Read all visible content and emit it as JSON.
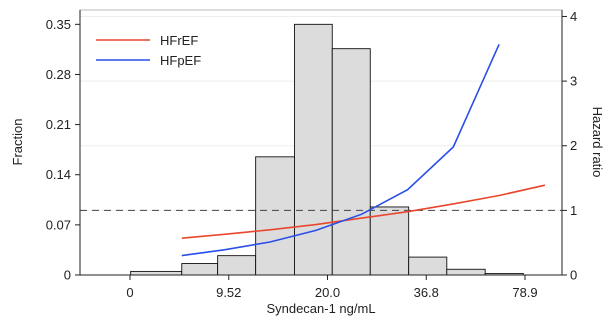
{
  "chart_data": {
    "type": "bar",
    "title": "",
    "xlabel": "Syndecan-1 ng/mL",
    "ylabel": "Fraction",
    "y2label": "Hazard ratio",
    "x_tick_labels": [
      "0",
      "9.52",
      "20.0",
      "36.8",
      "78.9"
    ],
    "y_ticks": [
      0,
      0.07,
      0.14,
      0.21,
      0.28,
      0.35
    ],
    "y_tick_labels": [
      "0",
      "0.07",
      "0.14",
      "0.21",
      "0.28",
      "0.35"
    ],
    "y2_ticks": [
      0,
      1,
      2,
      3,
      4
    ],
    "y2_tick_labels": [
      "0",
      "1",
      "2",
      "3",
      "4"
    ],
    "ylim": [
      0,
      0.37
    ],
    "y2lim": [
      0,
      4.1
    ],
    "grid": true,
    "legend_position": "top-left",
    "histogram": {
      "bin_edges": [
        6.0,
        8.1,
        10.0,
        12.5,
        15.7,
        19.6,
        24.5,
        30.7,
        38.4,
        48.1,
        60.2
      ],
      "values": [
        0.005,
        0.016,
        0.027,
        0.165,
        0.35,
        0.316,
        0.095,
        0.025,
        0.008,
        0.002
      ],
      "color": "#dcdcdc"
    },
    "series": [
      {
        "name": "HFrEF",
        "color": "#e8472e",
        "x": [
          8.1,
          10.4,
          13.6,
          17.8,
          23.3,
          30.5,
          39.9,
          52.2,
          68.3
        ],
        "values": [
          0.57,
          0.63,
          0.7,
          0.78,
          0.88,
          0.98,
          1.1,
          1.23,
          1.39
        ]
      },
      {
        "name": "HFpEF",
        "color": "#2a4eea",
        "x": [
          8.1,
          10.4,
          13.6,
          17.8,
          23.3,
          30.5,
          39.9,
          52.2
        ],
        "values": [
          0.3,
          0.39,
          0.51,
          0.69,
          0.94,
          1.32,
          1.98,
          3.57
        ]
      }
    ],
    "reference_line": {
      "axis": "y2",
      "value": 1.0,
      "style": "dashed"
    }
  }
}
